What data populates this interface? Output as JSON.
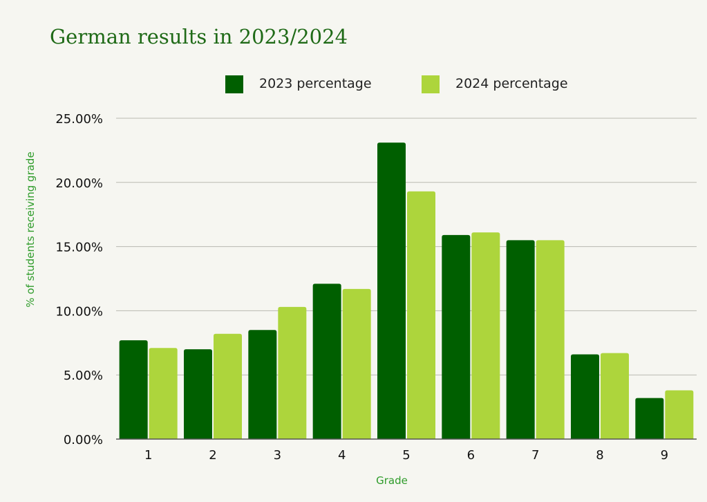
{
  "chart_data": {
    "type": "bar",
    "title": "German results in 2023/2024",
    "xlabel": "Grade",
    "ylabel": "% of students receiving grade",
    "categories": [
      "1",
      "2",
      "3",
      "4",
      "5",
      "6",
      "7",
      "8",
      "9"
    ],
    "series": [
      {
        "name": "2023 percentage",
        "color": "#005f00",
        "values": [
          7.7,
          7.0,
          8.5,
          12.1,
          23.1,
          15.9,
          15.5,
          6.6,
          3.2
        ]
      },
      {
        "name": "2024 percentage",
        "color": "#add53c",
        "values": [
          7.1,
          8.2,
          10.3,
          11.7,
          19.3,
          16.1,
          15.5,
          6.7,
          3.8
        ]
      }
    ],
    "ylim": [
      0,
      25
    ],
    "yticks": [
      "0.00%",
      "5.00%",
      "10.00%",
      "15.00%",
      "20.00%",
      "25.00%"
    ],
    "ytick_values": [
      0,
      5,
      10,
      15,
      20,
      25
    ],
    "legend_position": "top",
    "grid": true,
    "colors": {
      "title": "#1f6a17",
      "axis_label": "#2e9b2a",
      "grid": "#b9b9b1",
      "baseline": "#555555"
    }
  }
}
